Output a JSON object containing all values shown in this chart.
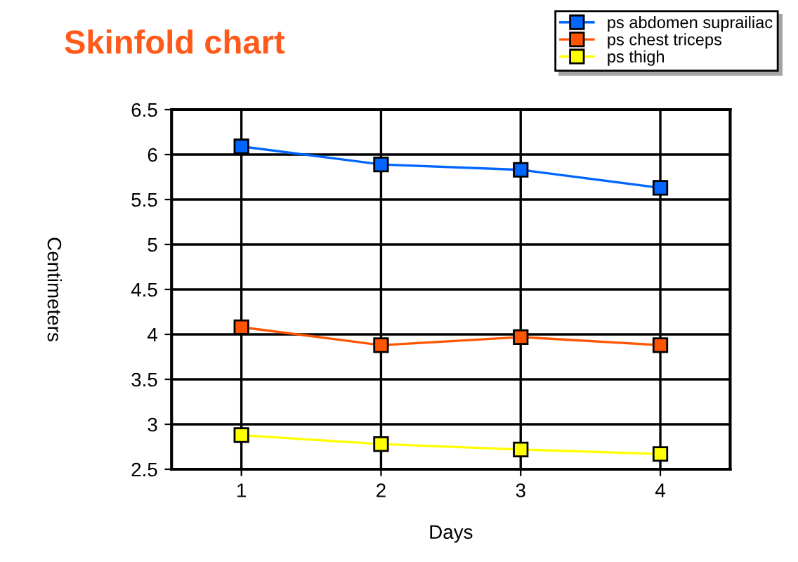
{
  "chart_data": {
    "type": "line",
    "title": "Skinfold chart",
    "xlabel": "Days",
    "ylabel": "Centimeters",
    "categories": [
      "1",
      "2",
      "3",
      "4"
    ],
    "series": [
      {
        "name": "ps abdomen suprailiac",
        "color": "#0066ff",
        "values": [
          6.09,
          5.89,
          5.83,
          5.63
        ]
      },
      {
        "name": "ps chest triceps",
        "color": "#ff5500",
        "values": [
          4.08,
          3.88,
          3.97,
          3.88
        ]
      },
      {
        "name": "ps thigh",
        "color": "#ffff00",
        "values": [
          2.88,
          2.78,
          2.72,
          2.67
        ]
      }
    ],
    "ylim": [
      2.5,
      6.5
    ],
    "yticks": [
      2.5,
      3,
      3.5,
      4,
      4.5,
      5,
      5.5,
      6,
      6.5
    ],
    "grid": true,
    "legend": "top right",
    "marker": "square",
    "line_style": "solid"
  }
}
